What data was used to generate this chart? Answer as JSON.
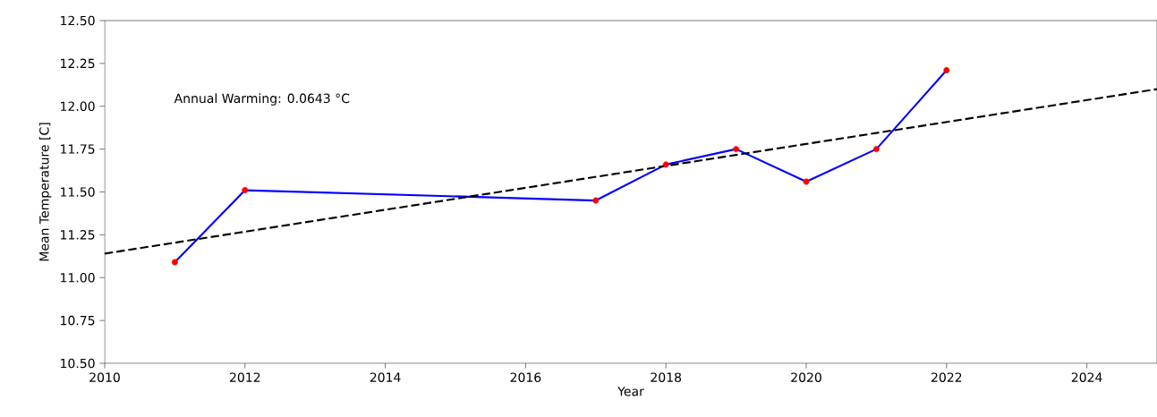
{
  "chart_data": {
    "type": "line",
    "xlabel": "Year",
    "ylabel": "Mean Temperature [C]",
    "annotations": [
      "Annual Warming: 0.0643 °C"
    ],
    "x": [
      2011,
      2012,
      2017,
      2018,
      2019,
      2020,
      2021,
      2022
    ],
    "series": [
      {
        "color": "#0000ff",
        "marker": "none",
        "line_style": "solid",
        "values": [
          11.09,
          11.51,
          11.45,
          11.66,
          11.75,
          11.56,
          11.75,
          12.21
        ]
      },
      {
        "type": "scatter",
        "color": "#ff0000",
        "marker": "circle",
        "values": [
          11.09,
          11.51,
          11.45,
          11.66,
          11.75,
          11.56,
          11.75,
          12.21
        ]
      },
      {
        "type": "line",
        "color": "#000000",
        "marker": "none",
        "line_style": "dashed",
        "x": [
          2010,
          2025
        ],
        "values": [
          11.14,
          12.1
        ]
      }
    ],
    "xlim": [
      2010,
      2025
    ],
    "ylim": [
      10.5,
      12.5
    ],
    "xticks": [
      2010,
      2012,
      2014,
      2016,
      2018,
      2020,
      2022,
      2024
    ],
    "yticks": [
      {
        "value": 10.5,
        "label": "10.50"
      },
      {
        "value": 10.75,
        "label": "10.75"
      },
      {
        "value": 11.0,
        "label": "11.00"
      },
      {
        "value": 11.25,
        "label": "11.25"
      },
      {
        "value": 11.5,
        "label": "11.50"
      },
      {
        "value": 11.75,
        "label": "11.75"
      },
      {
        "value": 12.0,
        "label": "12.00"
      },
      {
        "value": 12.25,
        "label": "12.25"
      },
      {
        "value": 12.5,
        "label": "12.50"
      }
    ]
  }
}
